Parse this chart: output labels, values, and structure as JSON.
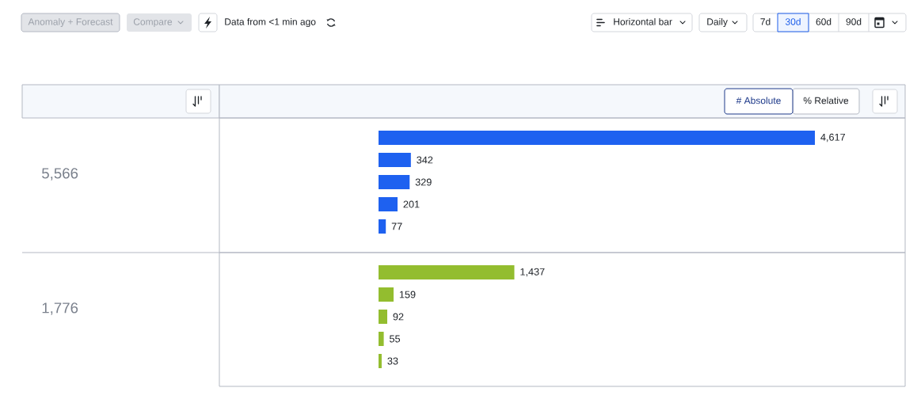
{
  "chart_data": [
    {
      "type": "other",
      "annotations": [
        "Anomaly + Forecast",
        "Compare",
        "Data from <1 min ago",
        "Horizontal bar",
        "Daily",
        "7d",
        "30d",
        "60d",
        "90d",
        "# Absolute",
        "% Relative"
      ]
    },
    {
      "type": "bar",
      "orientation": "horizontal",
      "categories": [
        null,
        null,
        null,
        null,
        null
      ],
      "values": [
        4617,
        342,
        329,
        201,
        77
      ],
      "color": "#1e61f0",
      "value_labels": [
        "4,617",
        "342",
        "329",
        "201",
        "77"
      ],
      "annotations": [
        "5,566"
      ]
    },
    {
      "type": "bar",
      "orientation": "horizontal",
      "categories": [
        null,
        null,
        null,
        null,
        null
      ],
      "values": [
        1437,
        159,
        92,
        55,
        33
      ],
      "color": "#93bd2f",
      "value_labels": [
        "1,437",
        "159",
        "92",
        "55",
        "33"
      ],
      "annotations": [
        "1,776"
      ]
    }
  ]
}
